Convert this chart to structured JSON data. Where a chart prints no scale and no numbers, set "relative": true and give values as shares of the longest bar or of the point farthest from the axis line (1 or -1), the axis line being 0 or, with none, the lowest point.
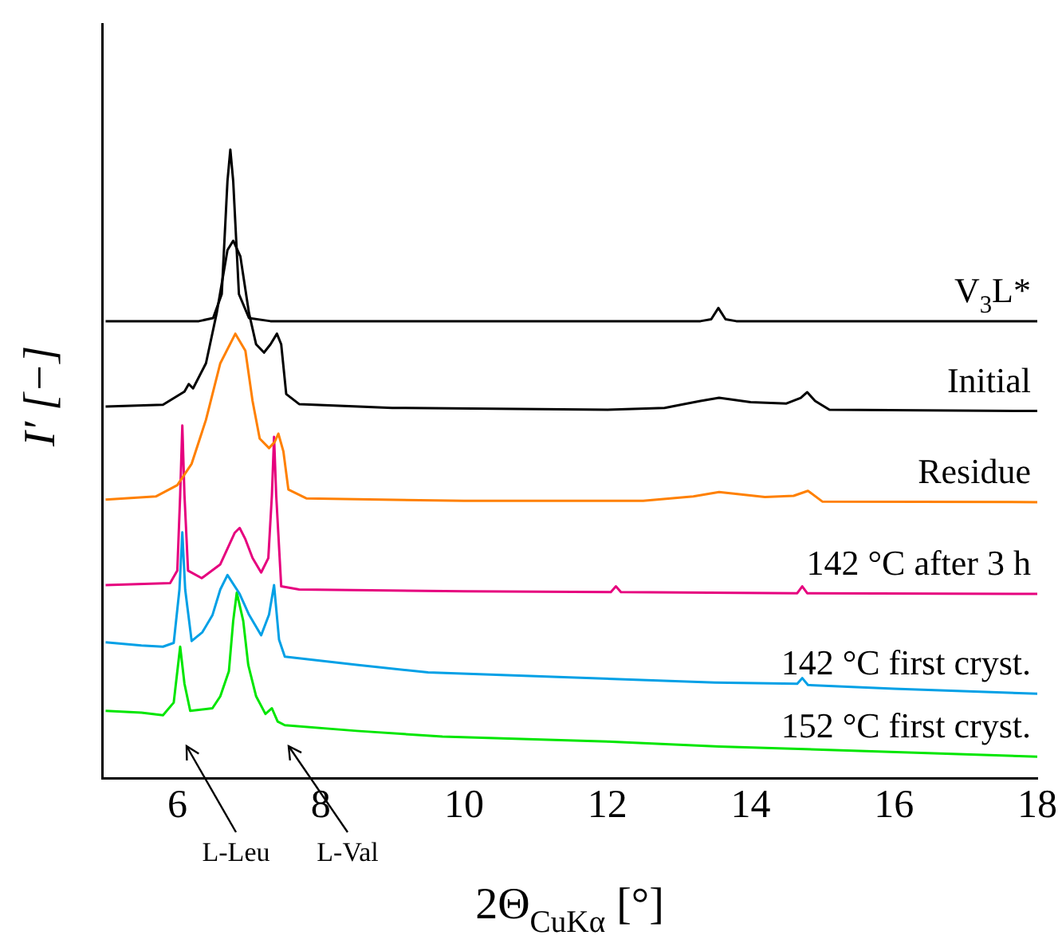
{
  "chart_data": {
    "type": "line",
    "relative": true,
    "xlabel": "2Θ$_{CuKα}$ [°]",
    "ylabel": "I′ [−]",
    "xlim": [
      4.95,
      18
    ],
    "xticks": [
      6,
      8,
      10,
      12,
      14,
      16,
      18
    ],
    "grid": false,
    "legend": false,
    "marker": "none",
    "line_style": "solid",
    "series": [
      {
        "name": "V$_{3}$L*",
        "color": "#000000",
        "x": [
          5,
          6.3,
          6.5,
          6.62,
          6.7,
          6.74,
          6.78,
          6.86,
          7.0,
          7.3,
          13.3,
          13.45,
          13.55,
          13.65,
          13.8,
          18
        ],
        "values": [
          0.727,
          0.727,
          0.732,
          0.77,
          0.95,
          1.0,
          0.95,
          0.77,
          0.732,
          0.727,
          0.727,
          0.73,
          0.748,
          0.73,
          0.727,
          0.727
        ]
      },
      {
        "name": "Initial",
        "color": "#000000",
        "x": [
          5,
          5.8,
          6.1,
          6.16,
          6.22,
          6.4,
          6.55,
          6.7,
          6.78,
          6.88,
          7.0,
          7.1,
          7.21,
          7.3,
          7.39,
          7.45,
          7.52,
          7.7,
          9,
          12,
          12.8,
          13.3,
          13.56,
          14.0,
          14.5,
          14.7,
          14.79,
          14.9,
          15.1,
          18
        ],
        "values": [
          0.591,
          0.594,
          0.615,
          0.627,
          0.62,
          0.66,
          0.74,
          0.84,
          0.855,
          0.83,
          0.74,
          0.69,
          0.677,
          0.69,
          0.707,
          0.69,
          0.611,
          0.595,
          0.589,
          0.586,
          0.589,
          0.6,
          0.605,
          0.598,
          0.596,
          0.605,
          0.614,
          0.6,
          0.586,
          0.584
        ]
      },
      {
        "name": "Residue",
        "color": "#ff8000",
        "x": [
          5,
          5.7,
          6.0,
          6.2,
          6.4,
          6.6,
          6.81,
          6.95,
          7.05,
          7.15,
          7.28,
          7.36,
          7.41,
          7.48,
          7.55,
          7.8,
          10,
          12.5,
          13.2,
          13.56,
          14.2,
          14.6,
          14.8,
          15.0,
          18
        ],
        "values": [
          0.443,
          0.448,
          0.466,
          0.5,
          0.57,
          0.66,
          0.707,
          0.68,
          0.6,
          0.54,
          0.525,
          0.535,
          0.548,
          0.52,
          0.459,
          0.445,
          0.441,
          0.441,
          0.448,
          0.455,
          0.447,
          0.449,
          0.457,
          0.44,
          0.439
        ]
      },
      {
        "name": "142 °C after 3 h",
        "color": "#e6007e",
        "x": [
          5,
          5.9,
          6.0,
          6.04,
          6.07,
          6.1,
          6.15,
          6.34,
          6.6,
          6.8,
          6.87,
          6.95,
          7.05,
          7.17,
          7.27,
          7.32,
          7.35,
          7.38,
          7.45,
          7.7,
          10,
          12.05,
          12.12,
          12.19,
          14.65,
          14.72,
          14.79,
          18
        ],
        "values": [
          0.307,
          0.31,
          0.33,
          0.45,
          0.561,
          0.45,
          0.33,
          0.318,
          0.34,
          0.39,
          0.398,
          0.38,
          0.35,
          0.327,
          0.35,
          0.45,
          0.543,
          0.45,
          0.305,
          0.3,
          0.297,
          0.296,
          0.305,
          0.296,
          0.294,
          0.305,
          0.294,
          0.293
        ]
      },
      {
        "name": "142 °C first cryst.",
        "color": "#00a0e6",
        "x": [
          5,
          5.5,
          5.8,
          5.95,
          6.03,
          6.07,
          6.11,
          6.2,
          6.35,
          6.49,
          6.6,
          6.7,
          6.87,
          7.0,
          7.17,
          7.28,
          7.35,
          7.42,
          7.5,
          8.5,
          9.5,
          11,
          13.5,
          14.65,
          14.72,
          14.8,
          16,
          18
        ],
        "values": [
          0.216,
          0.211,
          0.209,
          0.215,
          0.3,
          0.391,
          0.3,
          0.218,
          0.232,
          0.259,
          0.3,
          0.323,
          0.293,
          0.26,
          0.227,
          0.26,
          0.307,
          0.22,
          0.193,
          0.18,
          0.168,
          0.162,
          0.152,
          0.15,
          0.159,
          0.148,
          0.142,
          0.134
        ]
      },
      {
        "name": "152 °C first cryst.",
        "color": "#00e600",
        "x": [
          5,
          5.5,
          5.8,
          5.95,
          6.04,
          6.1,
          6.18,
          6.49,
          6.6,
          6.72,
          6.78,
          6.83,
          6.92,
          6.99,
          7.1,
          7.23,
          7.32,
          7.4,
          7.5,
          8.5,
          9.7,
          12,
          13.56,
          15,
          18
        ],
        "values": [
          0.107,
          0.104,
          0.1,
          0.12,
          0.209,
          0.15,
          0.107,
          0.111,
          0.13,
          0.17,
          0.25,
          0.295,
          0.25,
          0.18,
          0.13,
          0.102,
          0.111,
          0.09,
          0.084,
          0.075,
          0.066,
          0.058,
          0.05,
          0.045,
          0.034
        ]
      }
    ],
    "annotations": [
      "L-Leu",
      "L-Val"
    ]
  }
}
